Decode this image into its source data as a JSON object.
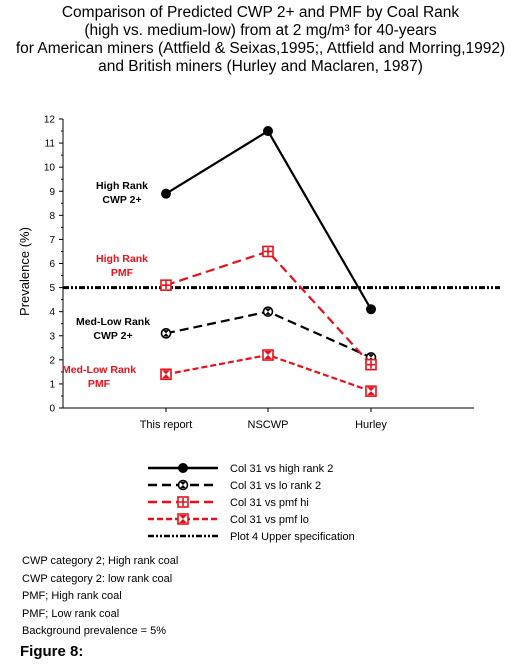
{
  "title_lines": [
    "Comparison of Predicted CWP 2+ and PMF by Coal Rank",
    "(high vs. medium-low) from at 2 mg/m³ for 40-years",
    "for American miners (Attfield & Seixas,1995;, Attfield and Morring,1992)",
    "and British miners (Hurley and Maclaren, 1987)"
  ],
  "chart_data": {
    "type": "line",
    "ylabel": "Prevalence (%)",
    "xlabel": "",
    "categories": [
      "This report",
      "NSCWP",
      "Hurley"
    ],
    "ylim": [
      0,
      12
    ],
    "yticks": [
      "0",
      "1",
      "2",
      "3",
      "4",
      "5",
      "6",
      "7",
      "8",
      "9",
      "10",
      "11",
      "12"
    ],
    "series": [
      {
        "name": "Col 31 vs high rank 2",
        "values": [
          8.9,
          11.5,
          4.1
        ],
        "color": "#000000",
        "style": "solid",
        "marker": "filled-circle"
      },
      {
        "name": "Col 31 vs lo rank 2",
        "values": [
          3.1,
          4.0,
          2.1
        ],
        "color": "#000000",
        "style": "dashed",
        "marker": "hourglass-circle"
      },
      {
        "name": "Col 31 vs pmf hi",
        "values": [
          5.1,
          6.5,
          1.8
        ],
        "color": "#e8101a",
        "style": "dashed",
        "marker": "plus-square"
      },
      {
        "name": "Col 31 vs pmf lo",
        "values": [
          1.4,
          2.2,
          0.7
        ],
        "color": "#e8101a",
        "style": "dotted-dash",
        "marker": "x-square"
      }
    ],
    "reference_line": {
      "name": "Plot 4 Upper specification",
      "value": 5,
      "color": "#000000",
      "style": "dash-dot-dot"
    },
    "annotations": [
      {
        "lines": [
          "High Rank",
          "CWP 2+"
        ],
        "color": "#000000"
      },
      {
        "lines": [
          "High Rank",
          "PMF"
        ],
        "color": "#e8101a"
      },
      {
        "lines": [
          "Med-Low Rank",
          "CWP 2+"
        ],
        "color": "#000000"
      },
      {
        "lines": [
          "Med-Low Rank",
          "PMF"
        ],
        "color": "#e8101a"
      }
    ],
    "grid": false,
    "legend_position": "bottom"
  },
  "notes": [
    "CWP category 2; High rank coal",
    "CWP category 2: low rank coal",
    "PMF; High rank coal",
    "PMF; Low rank coal",
    "Background prevalence = 5%"
  ],
  "figure_label": "Figure 8:"
}
